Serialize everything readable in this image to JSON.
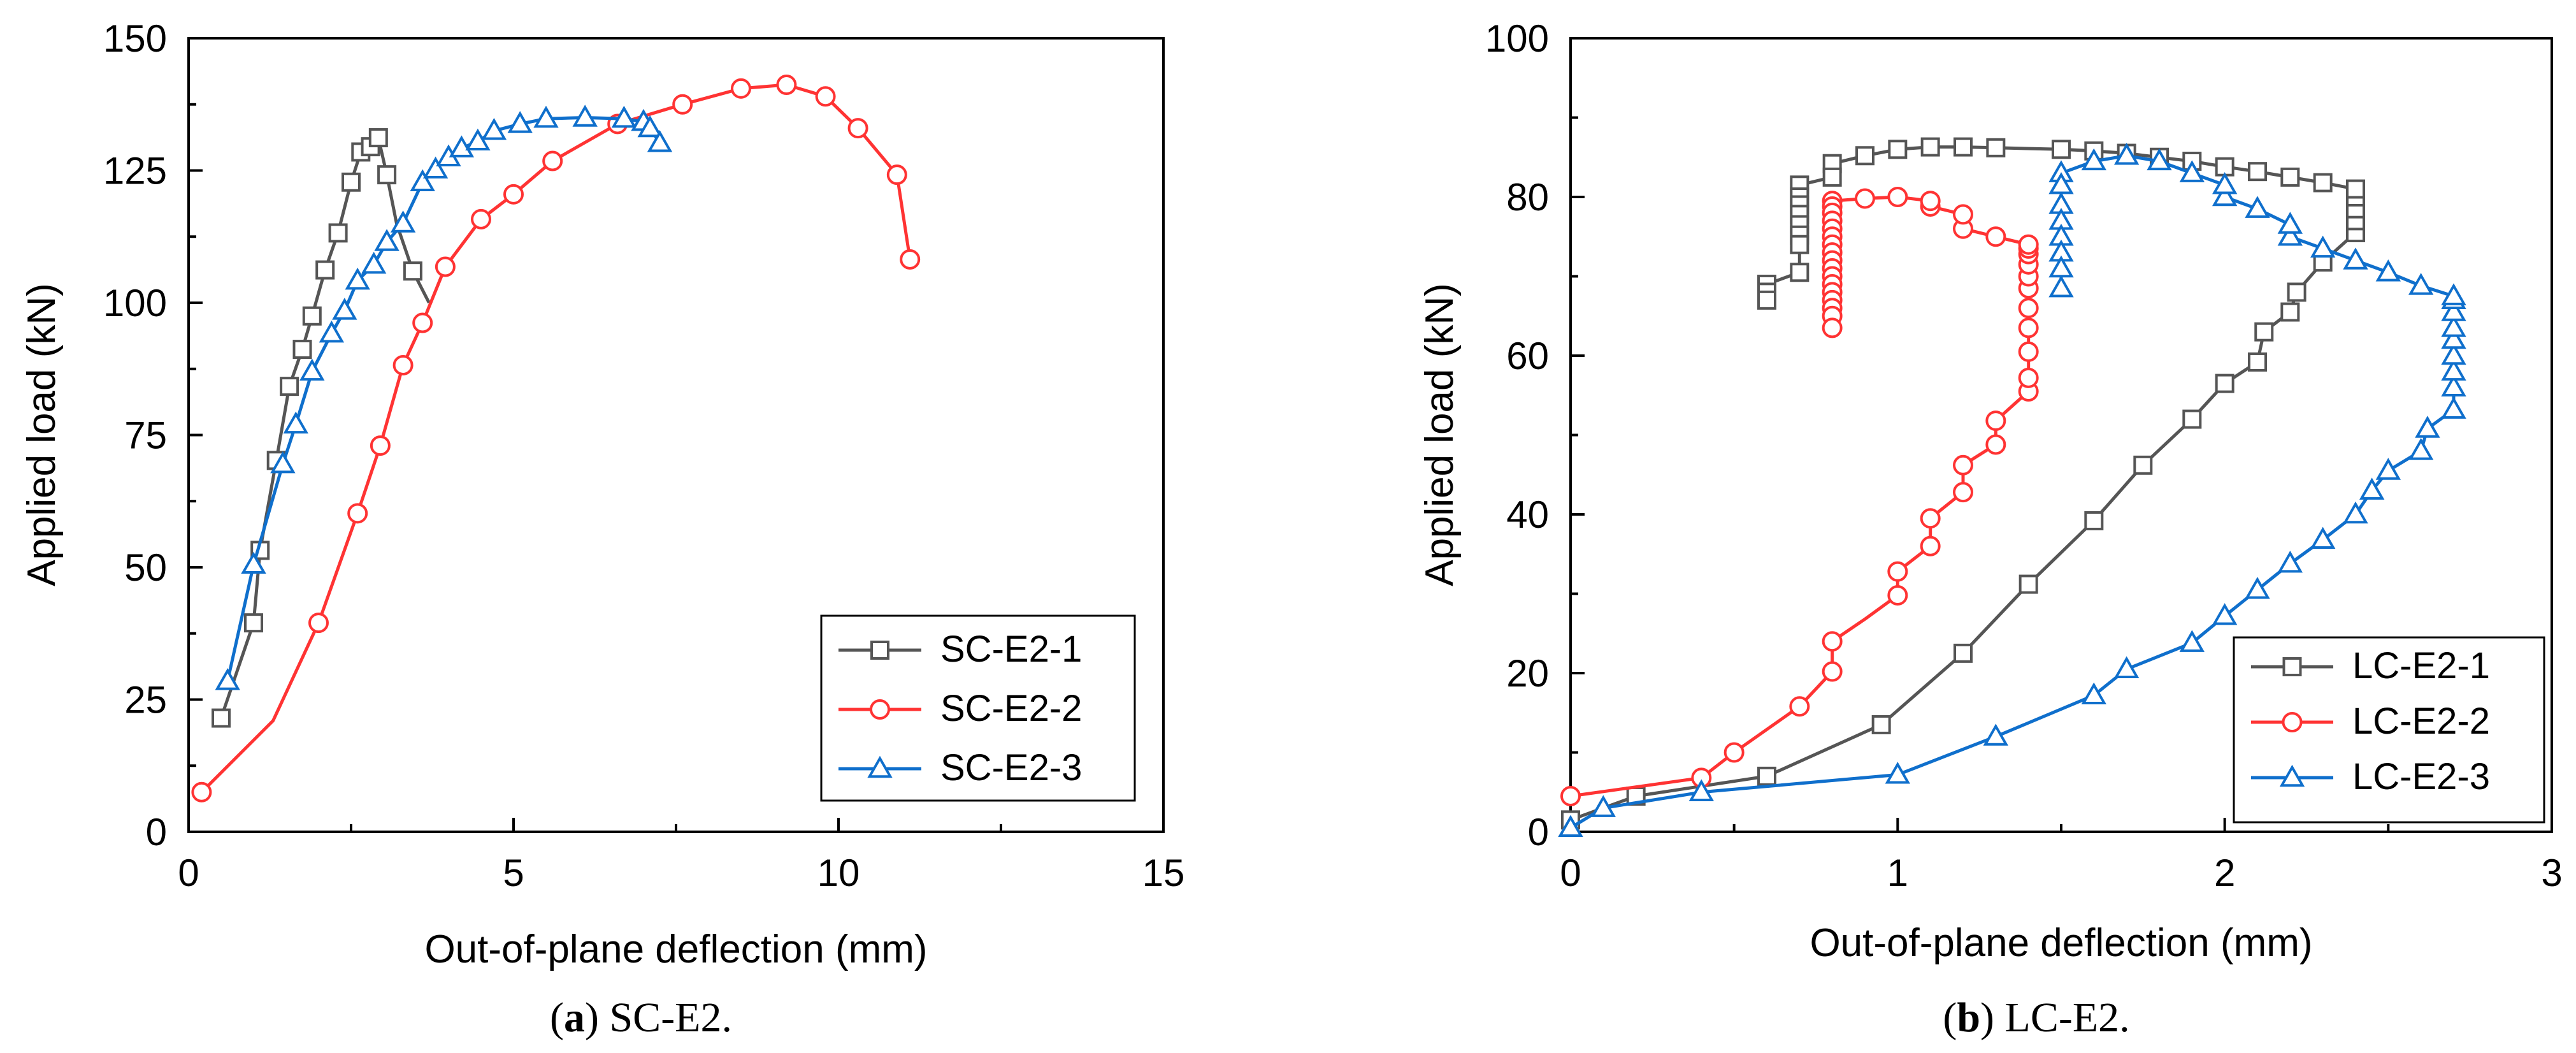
{
  "chart_data": [
    {
      "type": "line",
      "panel_letter": "a",
      "caption": "SC-E2.",
      "xlabel": "Out-of-plane deflection (mm)",
      "ylabel": "Applied load (kN)",
      "xlim": [
        0,
        15
      ],
      "ylim": [
        0,
        150
      ],
      "xticks": [
        0,
        5,
        10,
        15
      ],
      "yticks": [
        0,
        25,
        50,
        75,
        100,
        125,
        150
      ],
      "xtick_labels": [
        "0",
        "5",
        "10",
        "15"
      ],
      "ytick_labels": [
        "0",
        "25",
        "50",
        "75",
        "100",
        "125",
        "150"
      ],
      "legend_position": "bottom-right",
      "series": [
        {
          "name": "SC-E2-1",
          "color": "#555555",
          "marker": "square",
          "x": [
            0.5,
            1.0,
            1.1,
            1.35,
            1.55,
            1.75,
            1.9,
            2.1,
            2.3,
            2.5,
            2.65,
            2.8,
            2.92,
            3.05,
            3.2,
            3.45,
            3.7
          ],
          "y": [
            21.5,
            39.5,
            53.2,
            70.2,
            84.2,
            91.2,
            97.5,
            106.2,
            113.2,
            122.8,
            128.5,
            129.5,
            131.2,
            124.2,
            115.0,
            106.0,
            100.0
          ],
          "markers": [
            true,
            true,
            true,
            true,
            true,
            true,
            true,
            true,
            true,
            true,
            true,
            true,
            true,
            true,
            false,
            true,
            false
          ]
        },
        {
          "name": "SC-E2-2",
          "color": "#ff3333",
          "marker": "circle",
          "x": [
            0.2,
            1.3,
            2.0,
            2.6,
            2.95,
            3.3,
            3.6,
            3.95,
            4.5,
            5.0,
            5.6,
            6.6,
            7.6,
            8.5,
            9.2,
            9.8,
            10.3,
            10.9,
            11.1
          ],
          "y": [
            7.5,
            21.0,
            39.5,
            60.2,
            73.0,
            88.2,
            96.2,
            106.8,
            115.8,
            120.5,
            126.8,
            133.8,
            137.5,
            140.5,
            141.2,
            139.0,
            133.0,
            124.2,
            108.2
          ],
          "markers": [
            true,
            false,
            true,
            true,
            true,
            true,
            true,
            true,
            true,
            true,
            true,
            true,
            true,
            true,
            true,
            true,
            true,
            true,
            true
          ]
        },
        {
          "name": "SC-E2-3",
          "color": "#0f6fcc",
          "marker": "triangle",
          "x": [
            0.6,
            1.0,
            1.45,
            1.65,
            1.9,
            2.2,
            2.4,
            2.6,
            2.85,
            3.05,
            3.3,
            3.6,
            3.8,
            4.0,
            4.2,
            4.45,
            4.7,
            5.1,
            5.5,
            6.1,
            6.7,
            7.0,
            7.1,
            7.25
          ],
          "y": [
            28.5,
            50.5,
            69.5,
            77.0,
            87.0,
            94.2,
            98.5,
            104.2,
            107.2,
            111.5,
            115.0,
            122.8,
            125.2,
            127.5,
            129.2,
            130.5,
            132.5,
            133.8,
            134.8,
            135.0,
            134.8,
            134.2,
            133.0,
            130.2
          ],
          "markers": [
            true,
            true,
            true,
            true,
            true,
            true,
            true,
            true,
            true,
            true,
            true,
            true,
            true,
            true,
            true,
            true,
            true,
            true,
            true,
            true,
            true,
            true,
            true,
            true
          ]
        }
      ]
    },
    {
      "type": "line",
      "panel_letter": "b",
      "caption": "LC-E2.",
      "xlabel": "Out-of-plane deflection (mm)",
      "ylabel": "Applied load (kN)",
      "xlim": [
        0,
        3
      ],
      "ylim": [
        0,
        100
      ],
      "xticks": [
        0,
        1,
        2,
        3
      ],
      "yticks": [
        0,
        20,
        40,
        60,
        80,
        100
      ],
      "xtick_labels": [
        "0",
        "1",
        "2",
        "3"
      ],
      "ytick_labels": [
        "0",
        "20",
        "40",
        "60",
        "80",
        "100"
      ],
      "legend_position": "bottom-right",
      "series": [
        {
          "name": "LC-E2-1",
          "color": "#555555",
          "marker": "square",
          "x": [
            0,
            0.2,
            0.6,
            0.95,
            1.2,
            1.4,
            1.6,
            1.75,
            1.9,
            2.0,
            2.1,
            2.12,
            2.2,
            2.22,
            2.3,
            2.4,
            2.4,
            2.4,
            2.4,
            2.4,
            2.3,
            2.2,
            2.1,
            2.0,
            1.9,
            1.8,
            1.7,
            1.6,
            1.5,
            1.3,
            1.2,
            1.1,
            1.0,
            0.9,
            0.8,
            0.8,
            0.7,
            0.7,
            0.7,
            0.7,
            0.7,
            0.7,
            0.7,
            0.7,
            0.6,
            0.6,
            0.6
          ],
          "y": [
            1.5,
            4.5,
            7.0,
            13.5,
            22.5,
            31.2,
            39.2,
            46.2,
            52.0,
            56.5,
            59.2,
            63.0,
            65.5,
            68.0,
            71.8,
            75.5,
            77.0,
            78.5,
            80.0,
            81.0,
            81.8,
            82.5,
            83.2,
            83.8,
            84.5,
            85.0,
            85.5,
            85.8,
            86.0,
            86.2,
            86.3,
            86.3,
            86.0,
            85.2,
            84.2,
            82.5,
            81.5,
            80.0,
            79.0,
            77.8,
            76.5,
            75.2,
            74.0,
            70.5,
            69.0,
            68.0,
            67.0
          ],
          "markers": [
            true,
            true,
            true,
            true,
            true,
            true,
            true,
            true,
            true,
            true,
            true,
            true,
            true,
            true,
            true,
            true,
            true,
            true,
            true,
            true,
            true,
            true,
            true,
            true,
            true,
            true,
            true,
            true,
            true,
            true,
            true,
            true,
            true,
            true,
            true,
            true,
            true,
            true,
            true,
            true,
            true,
            true,
            true,
            true,
            true,
            true,
            true
          ]
        },
        {
          "name": "LC-E2-2",
          "color": "#ff3333",
          "marker": "circle",
          "x": [
            0,
            0.4,
            0.5,
            0.7,
            0.8,
            0.8,
            0.9,
            1.0,
            1.0,
            1.1,
            1.1,
            1.2,
            1.2,
            1.3,
            1.3,
            1.4,
            1.4,
            1.4,
            1.4,
            1.4,
            1.4,
            1.4,
            1.4,
            1.4,
            1.4,
            1.4,
            1.3,
            1.2,
            1.2,
            1.1,
            1.1,
            1.0,
            0.9,
            0.8,
            0.8,
            0.8,
            0.8,
            0.8,
            0.8,
            0.8,
            0.8,
            0.8,
            0.8,
            0.8,
            0.8,
            0.8,
            0.8,
            0.8,
            0.8,
            0.8
          ],
          "y": [
            4.5,
            6.8,
            10.0,
            15.8,
            20.2,
            24.0,
            26.8,
            29.8,
            32.8,
            36.0,
            39.5,
            42.8,
            46.2,
            48.8,
            51.8,
            55.5,
            57.2,
            60.5,
            63.5,
            66.0,
            68.5,
            70.0,
            71.5,
            72.8,
            73.5,
            74.0,
            75.0,
            76.0,
            77.8,
            78.8,
            79.5,
            80.0,
            79.8,
            79.5,
            78.8,
            78.0,
            77.0,
            76.0,
            75.0,
            74.0,
            73.0,
            72.0,
            71.0,
            70.0,
            69.0,
            68.0,
            67.0,
            66.0,
            65.0,
            63.5
          ],
          "markers": [
            true,
            true,
            true,
            true,
            true,
            true,
            false,
            true,
            true,
            true,
            true,
            true,
            true,
            true,
            true,
            true,
            true,
            true,
            true,
            true,
            true,
            true,
            true,
            true,
            true,
            true,
            true,
            true,
            true,
            true,
            true,
            true,
            true,
            true,
            true,
            true,
            true,
            true,
            true,
            true,
            true,
            true,
            true,
            true,
            true,
            true,
            true,
            true,
            true,
            true
          ]
        },
        {
          "name": "LC-E2-3",
          "color": "#0f6fcc",
          "marker": "triangle",
          "x": [
            0,
            0.1,
            0.4,
            1.0,
            1.3,
            1.6,
            1.7,
            1.9,
            2.0,
            2.1,
            2.2,
            2.3,
            2.4,
            2.45,
            2.5,
            2.6,
            2.62,
            2.7,
            2.7,
            2.7,
            2.7,
            2.7,
            2.7,
            2.7,
            2.7,
            2.7,
            2.6,
            2.5,
            2.4,
            2.3,
            2.2,
            2.2,
            2.1,
            2.0,
            2.0,
            1.9,
            1.8,
            1.7,
            1.6,
            1.5,
            1.5,
            1.5,
            1.5,
            1.5,
            1.5,
            1.5,
            1.5
          ],
          "y": [
            0.5,
            3.0,
            5.0,
            7.2,
            12.0,
            17.2,
            20.5,
            23.8,
            27.2,
            30.5,
            33.8,
            36.8,
            40.0,
            43.0,
            45.5,
            48.0,
            50.8,
            53.2,
            56.0,
            58.0,
            60.0,
            62.0,
            63.5,
            65.5,
            67.0,
            67.5,
            68.8,
            70.5,
            72.0,
            73.5,
            75.0,
            76.5,
            78.5,
            80.0,
            81.5,
            83.0,
            84.5,
            85.2,
            84.5,
            83.0,
            81.5,
            79.0,
            77.0,
            75.0,
            73.0,
            71.0,
            68.5
          ],
          "markers": [
            true,
            true,
            true,
            true,
            true,
            true,
            true,
            true,
            true,
            true,
            true,
            true,
            true,
            true,
            true,
            true,
            true,
            true,
            true,
            true,
            true,
            true,
            true,
            true,
            true,
            true,
            true,
            true,
            true,
            true,
            true,
            true,
            true,
            true,
            true,
            true,
            true,
            true,
            true,
            true,
            true,
            true,
            true,
            true,
            true,
            true,
            true
          ]
        }
      ]
    }
  ]
}
